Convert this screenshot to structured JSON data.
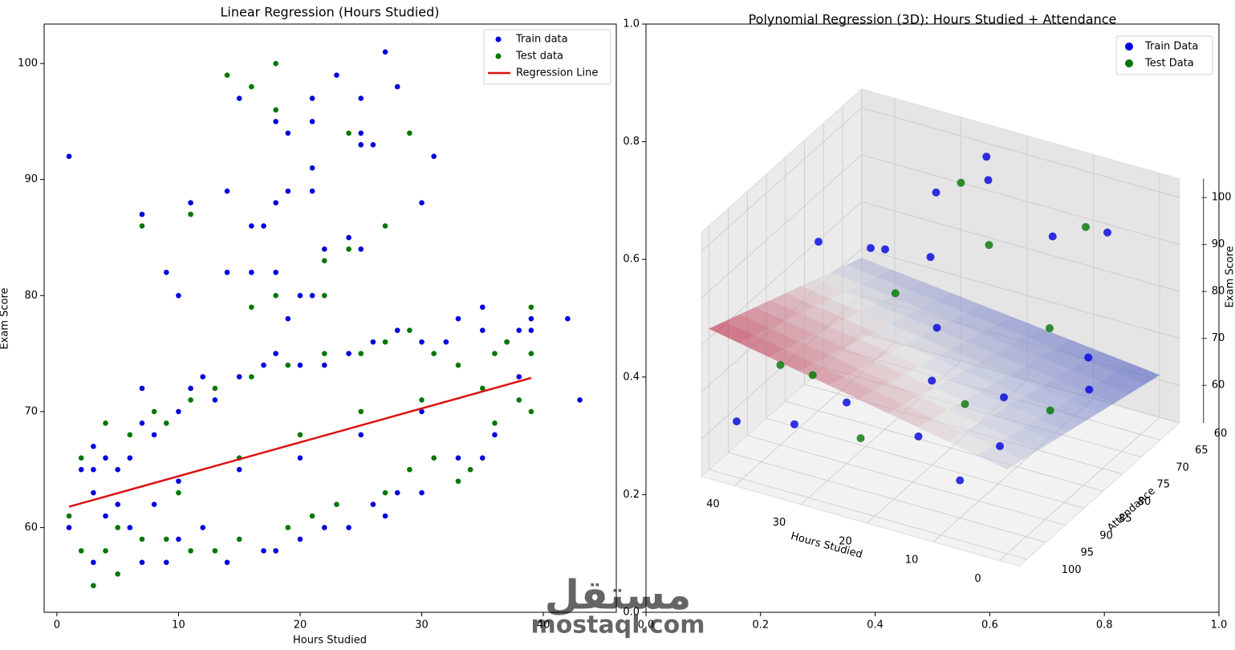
{
  "chart_data": [
    {
      "type": "scatter",
      "title": "Linear Regression (Hours Studied)",
      "x_label": "Hours Studied",
      "y_label": "Exam Score",
      "xlim": [
        -1.05,
        46
      ],
      "ylim": [
        52.7,
        103.4
      ],
      "xticks": [
        0,
        10,
        20,
        30,
        40
      ],
      "yticks": [
        60,
        70,
        80,
        90,
        100
      ],
      "legend": "upper right",
      "series": [
        {
          "name": "Train data",
          "color": "#0000dd",
          "x": [
            1,
            1,
            7,
            7,
            9,
            10,
            11,
            14,
            14,
            15,
            16,
            16,
            17,
            18,
            18,
            18,
            19,
            19,
            19,
            20,
            21,
            21,
            21,
            21,
            21,
            22,
            23,
            24,
            25,
            25,
            25,
            25,
            26,
            27,
            28,
            30,
            31,
            42,
            43,
            38,
            39,
            24,
            27,
            14,
            9,
            3,
            7,
            3,
            3,
            3,
            4,
            5,
            6,
            7,
            8,
            10,
            11,
            12,
            13,
            15,
            17,
            18,
            20,
            22,
            24,
            26,
            28,
            30,
            32,
            33,
            35,
            35,
            37,
            39,
            38,
            36,
            35,
            33,
            30,
            28,
            26,
            22,
            20,
            18,
            17,
            12,
            10,
            8,
            6,
            5,
            4,
            2,
            30,
            25,
            20,
            15,
            10
          ],
          "values": [
            92,
            60,
            87,
            72,
            82,
            80,
            88,
            89,
            82,
            97,
            86,
            82,
            86,
            95,
            88,
            82,
            94,
            89,
            78,
            80,
            97,
            95,
            91,
            89,
            80,
            84,
            99,
            85,
            97,
            94,
            93,
            84,
            93,
            101,
            98,
            88,
            92,
            78,
            71,
            77,
            78,
            60,
            61,
            57,
            57,
            57,
            57,
            67,
            65,
            63,
            66,
            65,
            66,
            69,
            68,
            70,
            72,
            73,
            71,
            73,
            74,
            75,
            74,
            74,
            75,
            76,
            77,
            76,
            76,
            78,
            79,
            77,
            76,
            77,
            73,
            68,
            66,
            66,
            63,
            63,
            62,
            60,
            59,
            58,
            58,
            60,
            59,
            62,
            60,
            62,
            61,
            65,
            70,
            68,
            66,
            65,
            64
          ]
        },
        {
          "name": "Test data",
          "color": "#007700",
          "x": [
            14,
            16,
            18,
            18,
            7,
            11,
            24,
            29,
            27,
            22,
            24,
            16,
            18,
            22,
            3,
            5,
            2,
            4,
            1,
            2,
            4,
            6,
            8,
            9,
            11,
            13,
            16,
            19,
            22,
            25,
            27,
            29,
            31,
            33,
            36,
            37,
            39,
            39,
            39,
            38,
            36,
            34,
            33,
            31,
            29,
            27,
            23,
            21,
            19,
            15,
            13,
            11,
            9,
            7,
            5,
            20,
            25,
            15,
            10,
            30,
            35
          ],
          "values": [
            99,
            98,
            100,
            96,
            86,
            87,
            94,
            94,
            86,
            83,
            84,
            79,
            80,
            80,
            55,
            56,
            58,
            58,
            61,
            66,
            69,
            68,
            70,
            69,
            71,
            72,
            73,
            74,
            75,
            75,
            76,
            77,
            75,
            74,
            75,
            76,
            79,
            75,
            70,
            71,
            69,
            65,
            64,
            66,
            65,
            63,
            62,
            61,
            60,
            59,
            58,
            58,
            59,
            59,
            60,
            68,
            70,
            66,
            63,
            71,
            72
          ]
        }
      ],
      "regression": {
        "name": "Regression Line",
        "color": "#dd1111",
        "x": [
          1,
          39
        ],
        "values": [
          61.8,
          72.9
        ]
      }
    },
    {
      "type": "scatter3d",
      "title": "Polynomial Regression (3D): Hours Studied + Attendance",
      "xlim": [
        0,
        1
      ],
      "ylim": [
        0,
        1
      ],
      "xticks": [
        {
          "value": 0,
          "label": "0.0"
        },
        {
          "value": 0.2,
          "label": "0.2"
        },
        {
          "value": 0.4,
          "label": "0.4"
        },
        {
          "value": 0.6,
          "label": "0.6"
        },
        {
          "value": 0.8,
          "label": "0.8"
        },
        {
          "value": 1,
          "label": "1.0"
        }
      ],
      "yticks": [
        {
          "value": 0,
          "label": "0.0"
        },
        {
          "value": 0.2,
          "label": "0.2"
        },
        {
          "value": 0.4,
          "label": "0.4"
        },
        {
          "value": 0.6,
          "label": "0.6"
        },
        {
          "value": 0.8,
          "label": "0.8"
        },
        {
          "value": 1,
          "label": "1.0"
        }
      ],
      "x_label": "Hours Studied",
      "y_label": "Attendance",
      "z_label": "Exam Score",
      "x3lim": [
        -3,
        45
      ],
      "y3lim": [
        60,
        102
      ],
      "z3lim": [
        52,
        104
      ],
      "x3ticks": [
        0,
        10,
        20,
        30,
        40
      ],
      "y3ticks": [
        60,
        65,
        70,
        75,
        80,
        85,
        90,
        95,
        100
      ],
      "z3ticks": [
        60,
        70,
        80,
        90,
        100
      ],
      "legend": "upper right",
      "surface": {
        "hours": [
          0,
          45
        ],
        "attendance": [
          60,
          100
        ],
        "scores": [
          [
            61,
            70
          ],
          [
            68,
            82
          ]
        ]
      },
      "series": [
        {
          "name": "Train Data",
          "color": "#0000dd",
          "x": [
            25,
            23,
            28,
            5,
            40,
            35,
            15,
            30,
            10,
            20,
            35,
            5,
            25,
            12,
            38,
            8,
            42,
            18,
            30,
            2
          ],
          "y": [
            62,
            65,
            70,
            65,
            80,
            75,
            62,
            90,
            95,
            85,
            95,
            70,
            75,
            80,
            66,
            88,
            98,
            92,
            68,
            75
          ],
          "values": [
            99,
            97,
            96,
            93,
            88,
            85,
            86,
            65,
            60,
            70,
            62,
            70,
            72,
            66,
            77,
            63,
            62,
            64,
            80,
            68
          ]
        },
        {
          "name": "Test Data",
          "color": "#007700",
          "x": [
            30,
            10,
            20,
            38,
            15,
            25,
            5,
            33,
            40,
            12
          ],
          "y": [
            60,
            62,
            70,
            85,
            85,
            95,
            80,
            72,
            90,
            68
          ],
          "values": [
            90,
            90,
            88,
            64,
            67,
            63,
            66,
            74,
            69,
            72
          ]
        }
      ]
    }
  ],
  "watermark": {
    "arabic": "مستقل",
    "latin": "mostaql.com"
  }
}
